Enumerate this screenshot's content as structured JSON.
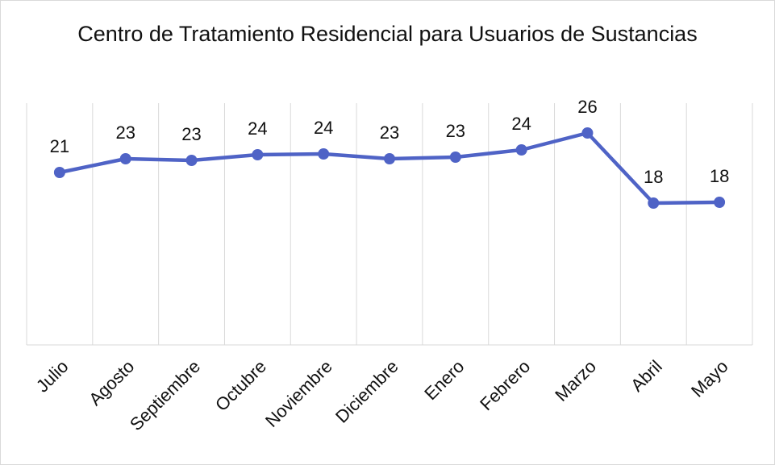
{
  "chart_data": {
    "type": "line",
    "title": "Centro de Tratamiento Residencial para Usuarios de Sustancias",
    "categories": [
      "Julio",
      "Agosto",
      "Septiembre",
      "Octubre",
      "Noviembre",
      "Diciembre",
      "Enero",
      "Febrero",
      "Marzo",
      "Abril",
      "Mayo"
    ],
    "series": [
      {
        "name": null,
        "color": "#4f63c6",
        "values": [
          21.4,
          23.1,
          22.9,
          23.6,
          23.7,
          23.1,
          23.3,
          24.2,
          26.3,
          17.6,
          17.7
        ],
        "value_labels": [
          "21",
          "23",
          "23",
          "24",
          "24",
          "23",
          "23",
          "24",
          "26",
          "18",
          "18"
        ]
      }
    ],
    "ylim": [
      0,
      30
    ],
    "grid": true
  }
}
